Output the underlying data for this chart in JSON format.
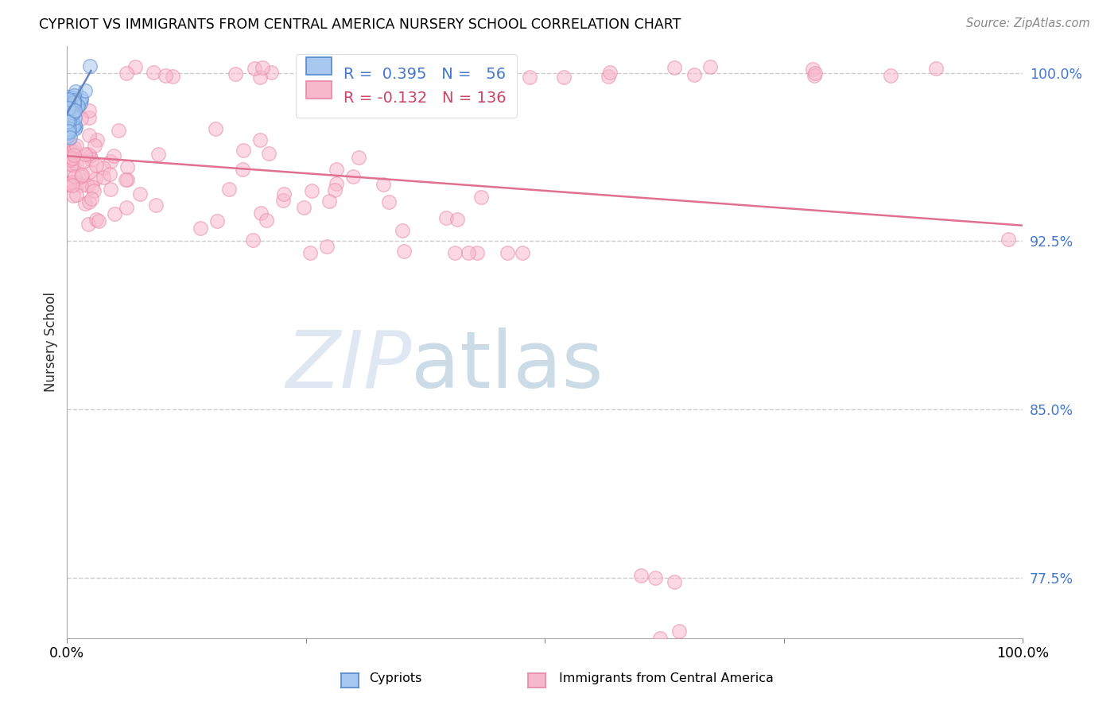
{
  "title": "CYPRIOT VS IMMIGRANTS FROM CENTRAL AMERICA NURSERY SCHOOL CORRELATION CHART",
  "source_text": "Source: ZipAtlas.com",
  "ylabel": "Nursery School",
  "legend_label_blue": "Cypriots",
  "legend_label_pink": "Immigrants from Central America",
  "R_blue": 0.395,
  "N_blue": 56,
  "R_pink": -0.132,
  "N_pink": 136,
  "xlim": [
    0.0,
    1.0
  ],
  "ylim": [
    0.748,
    1.012
  ],
  "ytick_vals": [
    0.775,
    0.85,
    0.925,
    1.0
  ],
  "ytick_labels": [
    "77.5%",
    "85.0%",
    "92.5%",
    "100.0%"
  ],
  "color_blue_fill": "#a8c8f0",
  "color_blue_edge": "#5588cc",
  "color_pink_fill": "#f8b8cc",
  "color_pink_edge": "#e888a8",
  "color_pink_line": "#e07090",
  "color_blue_line": "#6688bb",
  "marker_size": 160,
  "alpha": 0.55,
  "pink_line_y0": 0.963,
  "pink_line_y1": 0.932,
  "blue_line_x0": 0.0,
  "blue_line_x1": 0.025,
  "blue_line_y0": 0.982,
  "blue_line_y1": 1.001
}
